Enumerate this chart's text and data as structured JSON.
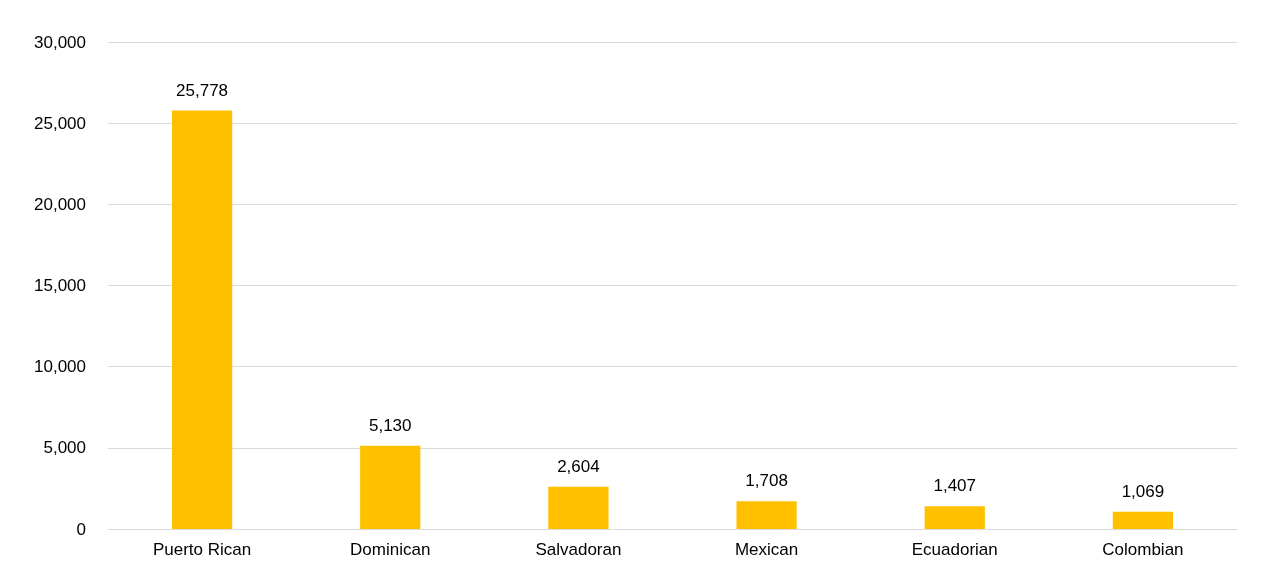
{
  "chart_data": {
    "type": "bar",
    "categories": [
      "Puerto Rican",
      "Dominican",
      "Salvadoran",
      "Mexican",
      "Ecuadorian",
      "Colombian"
    ],
    "values": [
      25778,
      5130,
      2604,
      1708,
      1407,
      1069
    ],
    "value_labels": [
      "25,778",
      "5,130",
      "2,604",
      "1,708",
      "1,407",
      "1,069"
    ],
    "color": "#ffc000",
    "ylim": [
      0,
      30000
    ],
    "yticks": [
      0,
      {
        "value": 5000,
        "label": "5,000"
      },
      {
        "value": 10000,
        "label": "10,000"
      },
      {
        "value": 15000,
        "label": "15,000"
      },
      {
        "value": 20000,
        "label": "20,000"
      },
      {
        "value": 25000,
        "label": "25,000"
      },
      {
        "value": 30000,
        "label": "30,000"
      }
    ],
    "grid": "y"
  }
}
